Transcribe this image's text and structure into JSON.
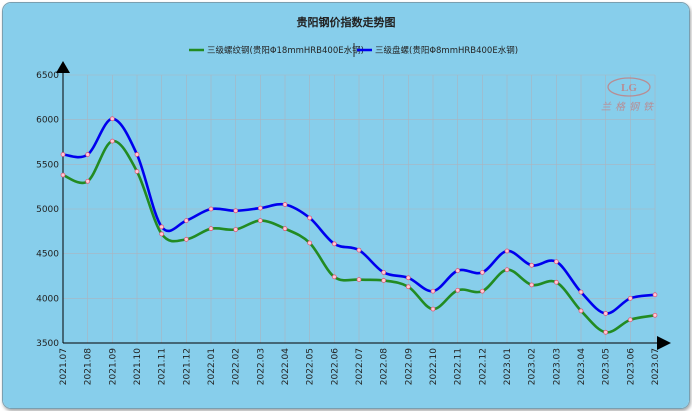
{
  "colors": {
    "background": "#87ceeb",
    "grid": "#aab4c0",
    "axis": "#000000",
    "series_1": "#228b22",
    "series_2": "#0000ee",
    "marker_fill": "#ffc8d6",
    "marker_stroke": "#e05070",
    "watermark": "#c87878"
  },
  "watermark_logo": {
    "icon": "lange-steel-logo",
    "text": "兰格钢铁"
  },
  "chart_data": {
    "type": "line",
    "title": "贵阳钢价指数走势图",
    "xlabel": "",
    "ylabel": "",
    "ylim": [
      3500,
      6500
    ],
    "yticks": [
      3500,
      4000,
      4500,
      5000,
      5500,
      6000,
      6500
    ],
    "grid": true,
    "legend_position": "top-center",
    "curve": "smooth",
    "categories": [
      "2021.07",
      "2021.08",
      "2021.09",
      "2021.10",
      "2021.11",
      "2021.12",
      "2022.01",
      "2022.02",
      "2022.03",
      "2022.04",
      "2022.05",
      "2022.06",
      "2022.07",
      "2022.08",
      "2022.09",
      "2022.10",
      "2022.11",
      "2022.12",
      "2023.01",
      "2023.02",
      "2023.03",
      "2023.04",
      "2023.05",
      "2023.06",
      "2023.07"
    ],
    "series": [
      {
        "name": "三级螺纹钢(贵阳Φ18mmHRB400E水钢)",
        "values": [
          5380,
          5310,
          5760,
          5420,
          4720,
          4660,
          4780,
          4770,
          4870,
          4780,
          4620,
          4240,
          4210,
          4200,
          4130,
          3880,
          4090,
          4080,
          4320,
          4150,
          4180,
          3860,
          3620,
          3760,
          3810
        ]
      },
      {
        "name": "三级盘螺(贵阳Φ8mmHRB400E水钢)",
        "values": [
          5610,
          5610,
          6010,
          5610,
          4800,
          4870,
          5000,
          4980,
          5010,
          5050,
          4900,
          4610,
          4540,
          4290,
          4230,
          4080,
          4310,
          4290,
          4530,
          4370,
          4410,
          4070,
          3830,
          4000,
          4040
        ]
      }
    ]
  }
}
